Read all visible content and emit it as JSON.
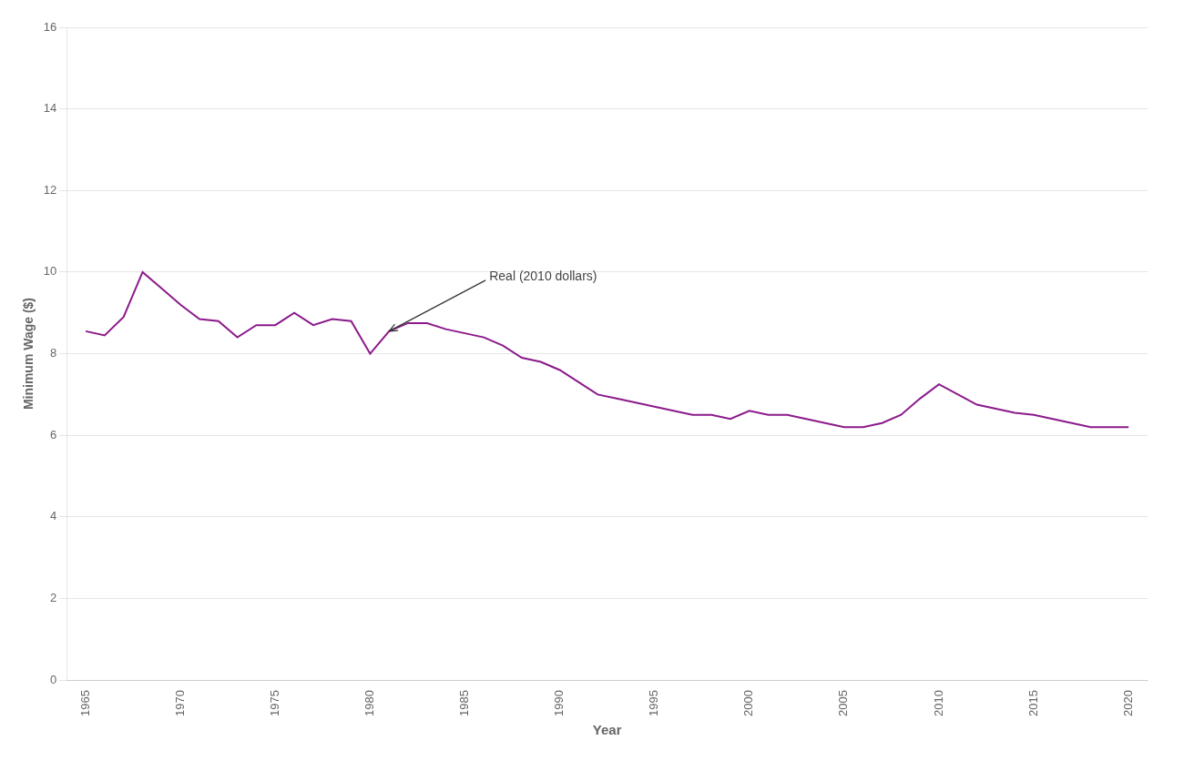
{
  "chart_data": {
    "type": "line",
    "x": [
      1965,
      1966,
      1967,
      1968,
      1969,
      1970,
      1971,
      1972,
      1973,
      1974,
      1975,
      1976,
      1977,
      1978,
      1979,
      1980,
      1981,
      1982,
      1983,
      1984,
      1985,
      1986,
      1987,
      1988,
      1989,
      1990,
      1991,
      1992,
      1993,
      1994,
      1995,
      1996,
      1997,
      1998,
      1999,
      2000,
      2001,
      2002,
      2003,
      2004,
      2005,
      2006,
      2007,
      2008,
      2009,
      2010,
      2011,
      2012,
      2013,
      2014,
      2015,
      2016,
      2017,
      2018,
      2019,
      2020
    ],
    "values": [
      8.55,
      8.45,
      8.9,
      10.0,
      9.6,
      9.2,
      8.85,
      8.8,
      8.4,
      8.7,
      8.7,
      9.0,
      8.7,
      8.85,
      8.8,
      8.0,
      8.55,
      8.75,
      8.75,
      8.6,
      8.5,
      8.4,
      8.2,
      7.9,
      7.8,
      7.6,
      7.3,
      7.0,
      6.9,
      6.8,
      6.7,
      6.6,
      6.5,
      6.5,
      6.4,
      6.6,
      6.5,
      6.5,
      6.4,
      6.3,
      6.2,
      6.2,
      6.3,
      6.5,
      6.9,
      7.25,
      7.0,
      6.75,
      6.65,
      6.55,
      6.5,
      6.4,
      6.3,
      6.2,
      6.2,
      6.2
    ],
    "color": "#8B1A8B",
    "x_label": "Year",
    "y_label": "Minimum Wage ($)",
    "annotations": [
      {
        "text": "Real (2010 dollars)",
        "x": 1981,
        "y": 8.55
      }
    ],
    "xlim": [
      1964,
      2021
    ],
    "ylim": [
      0,
      16
    ],
    "xticks": [
      1965,
      1970,
      1975,
      1980,
      1985,
      1990,
      1995,
      2000,
      2005,
      2010,
      2015,
      2020
    ],
    "yticks": [
      0,
      2,
      4,
      6,
      8,
      10,
      12,
      14,
      16
    ],
    "grid": "y"
  }
}
